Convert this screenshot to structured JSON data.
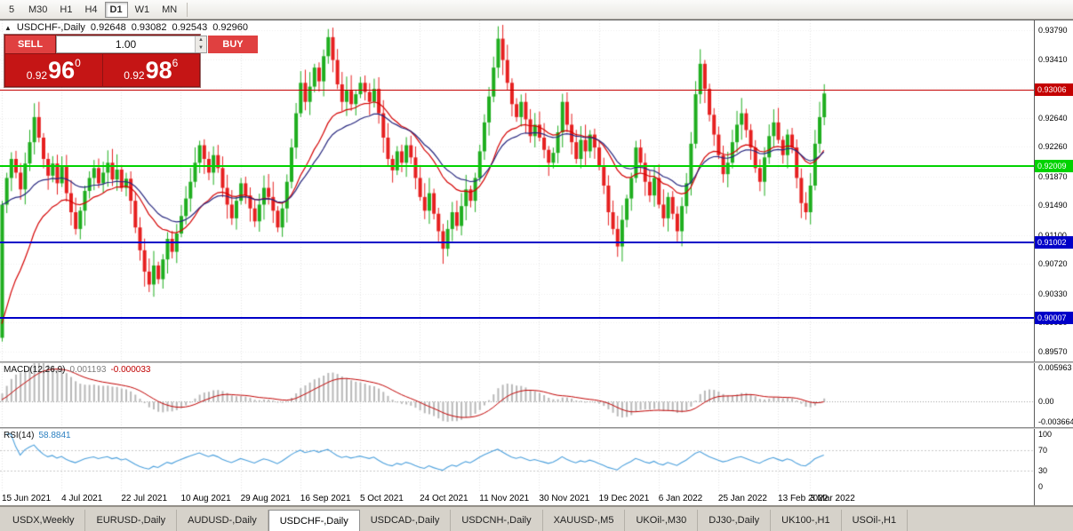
{
  "toolbar": {
    "timeframes": [
      {
        "label": "5",
        "active": false
      },
      {
        "label": "M30",
        "active": false
      },
      {
        "label": "H1",
        "active": false
      },
      {
        "label": "H4",
        "active": false
      },
      {
        "label": "D1",
        "active": true
      },
      {
        "label": "W1",
        "active": false
      },
      {
        "label": "MN",
        "active": false
      }
    ]
  },
  "header": {
    "collapse_icon": "▲",
    "symbol": "USDCHF-,Daily",
    "open": "0.92648",
    "high": "0.93082",
    "low": "0.92543",
    "close": "0.92960"
  },
  "trade_panel": {
    "sell_label": "SELL",
    "buy_label": "BUY",
    "volume": "1.00",
    "spin_up_icon": "▲",
    "spin_down_icon": "▼",
    "sell_price": {
      "prefix": "0.92",
      "big": "96",
      "sup": "0"
    },
    "buy_price": {
      "prefix": "0.92",
      "big": "98",
      "sup": "6"
    }
  },
  "price_axis": {
    "ticks": [
      "0.93790",
      "0.93410",
      "0.93030",
      "0.92640",
      "0.92260",
      "0.91870",
      "0.91490",
      "0.91100",
      "0.90720",
      "0.90330",
      "0.89950",
      "0.89570"
    ]
  },
  "hlines": [
    {
      "label": "0.93006",
      "color": "#c40000",
      "thickness": 1
    },
    {
      "label": "0.92009",
      "color": "#00d300",
      "thickness": 2
    },
    {
      "label": "0.91002",
      "color": "#0000c8",
      "thickness": 2
    },
    {
      "label": "0.90007",
      "color": "#0000c8",
      "thickness": 2
    }
  ],
  "macd": {
    "title": "MACD(12,26,9)",
    "value_main": "0.001193",
    "value_signal": "-0.000033",
    "ticks": [
      "0.005963",
      "0.00",
      "-0.003664"
    ],
    "max": 0.0068,
    "min": -0.0046,
    "hist_color": "#b8b8b8",
    "signal_color": "#c00000"
  },
  "rsi": {
    "title": "RSI(14)",
    "value": "58.8841",
    "ticks": [
      "100",
      "70",
      "30",
      "0"
    ],
    "levels": [
      70,
      30
    ],
    "line_color": "#4a9fdc",
    "max": 110,
    "min": -10
  },
  "date_axis": {
    "labels": [
      {
        "label": "15 Jun 2021",
        "i": 0
      },
      {
        "label": "4 Jul 2021",
        "i": 13
      },
      {
        "label": "22 Jul 2021",
        "i": 26
      },
      {
        "label": "10 Aug 2021",
        "i": 39
      },
      {
        "label": "29 Aug 2021",
        "i": 52
      },
      {
        "label": "16 Sep 2021",
        "i": 65
      },
      {
        "label": "5 Oct 2021",
        "i": 78
      },
      {
        "label": "24 Oct 2021",
        "i": 91
      },
      {
        "label": "11 Nov 2021",
        "i": 104
      },
      {
        "label": "30 Nov 2021",
        "i": 117
      },
      {
        "label": "19 Dec 2021",
        "i": 130
      },
      {
        "label": "6 Jan 2022",
        "i": 143
      },
      {
        "label": "25 Jan 2022",
        "i": 156
      },
      {
        "label": "13 Feb 2022",
        "i": 169
      },
      {
        "label": "3 Mar 2022",
        "i": 176
      }
    ]
  },
  "tabs": [
    {
      "label": "USDX,Weekly",
      "active": false
    },
    {
      "label": "EURUSD-,Daily",
      "active": false
    },
    {
      "label": "AUDUSD-,Daily",
      "active": false
    },
    {
      "label": "USDCHF-,Daily",
      "active": true
    },
    {
      "label": "USDCAD-,Daily",
      "active": false
    },
    {
      "label": "USDCNH-,Daily",
      "active": false
    },
    {
      "label": "XAUUSD-,M5",
      "active": false
    },
    {
      "label": "UKOil-,M30",
      "active": false
    },
    {
      "label": "DJ30-,Daily",
      "active": false
    },
    {
      "label": "UK100-,H1",
      "active": false
    },
    {
      "label": "USOil-,H1",
      "active": false
    }
  ],
  "chart_data": {
    "type": "candlestick",
    "symbol": "USDCHF",
    "timeframe": "Daily",
    "price_max": 0.9392,
    "price_min": 0.8944,
    "first_open": 0.8975,
    "last_candle": {
      "open": 0.92648,
      "high": 0.93082,
      "low": 0.92543,
      "close": 0.9296
    },
    "up_color": "#1fae1f",
    "down_color": "#e62020",
    "ma_red": {
      "period": 18,
      "color": "#d40000"
    },
    "ma_blue": {
      "period": 26,
      "color": "#26267e"
    },
    "closes": [
      0.915,
      0.9185,
      0.921,
      0.9192,
      0.917,
      0.9204,
      0.9232,
      0.9265,
      0.9238,
      0.921,
      0.9188,
      0.9204,
      0.9178,
      0.92,
      0.9165,
      0.914,
      0.9118,
      0.9142,
      0.9168,
      0.9185,
      0.9198,
      0.9178,
      0.9192,
      0.9205,
      0.9183,
      0.9196,
      0.9172,
      0.9184,
      0.9155,
      0.912,
      0.909,
      0.9062,
      0.9045,
      0.907,
      0.9052,
      0.9078,
      0.9105,
      0.9088,
      0.9112,
      0.9135,
      0.9158,
      0.918,
      0.9205,
      0.9228,
      0.921,
      0.9192,
      0.9215,
      0.9198,
      0.9172,
      0.915,
      0.9132,
      0.9155,
      0.9178,
      0.9162,
      0.9145,
      0.9128,
      0.915,
      0.9172,
      0.916,
      0.9142,
      0.912,
      0.9145,
      0.918,
      0.9225,
      0.927,
      0.931,
      0.9285,
      0.9305,
      0.933,
      0.9312,
      0.9345,
      0.937,
      0.934,
      0.9308,
      0.9285,
      0.93,
      0.9282,
      0.9295,
      0.931,
      0.9298,
      0.9285,
      0.9302,
      0.927,
      0.9238,
      0.921,
      0.9195,
      0.922,
      0.9205,
      0.9228,
      0.9212,
      0.9185,
      0.916,
      0.9142,
      0.9165,
      0.9138,
      0.9115,
      0.9092,
      0.9118,
      0.914,
      0.9122,
      0.9148,
      0.917,
      0.9155,
      0.9185,
      0.922,
      0.9258,
      0.9292,
      0.933,
      0.9368,
      0.934,
      0.931,
      0.9282,
      0.9265,
      0.9285,
      0.9262,
      0.924,
      0.9255,
      0.9238,
      0.9222,
      0.9205,
      0.9218,
      0.9245,
      0.9285,
      0.9255,
      0.9232,
      0.921,
      0.9235,
      0.922,
      0.9242,
      0.9225,
      0.92,
      0.9175,
      0.914,
      0.9118,
      0.9095,
      0.913,
      0.9158,
      0.9185,
      0.9225,
      0.9205,
      0.918,
      0.9162,
      0.9185,
      0.915,
      0.9132,
      0.916,
      0.9138,
      0.9115,
      0.9148,
      0.9178,
      0.923,
      0.9295,
      0.9335,
      0.9302,
      0.9268,
      0.9242,
      0.9215,
      0.919,
      0.9205,
      0.9232,
      0.9255,
      0.927,
      0.9248,
      0.9225,
      0.9198,
      0.918,
      0.9212,
      0.924,
      0.9258,
      0.9235,
      0.9215,
      0.9242,
      0.9225,
      0.9185,
      0.9152,
      0.914,
      0.9175,
      0.923,
      0.9265,
      0.9296
    ]
  }
}
